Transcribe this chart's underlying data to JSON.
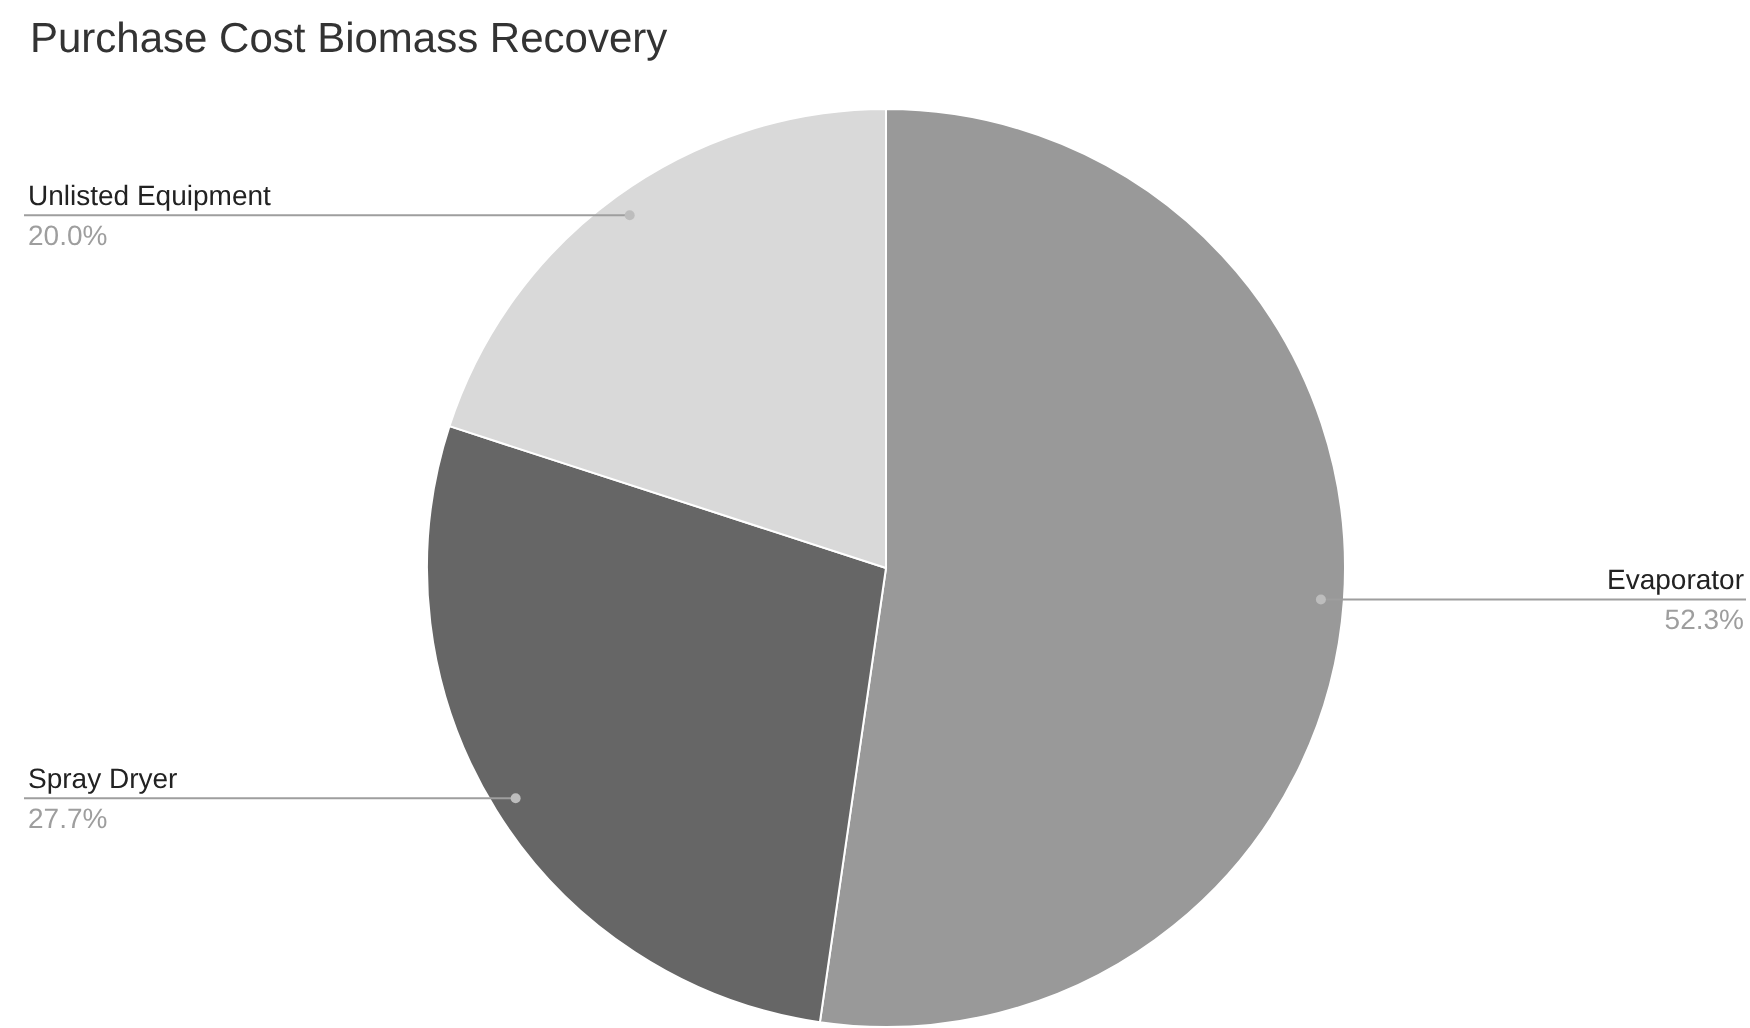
{
  "chart_data": {
    "type": "pie",
    "title": "Purchase Cost Biomass Recovery",
    "categories": [
      "Evaporator",
      "Spray Dryer",
      "Unlisted Equipment"
    ],
    "values": [
      52.3,
      27.7,
      20.0
    ],
    "value_labels": [
      "52.3%",
      "27.7%",
      "20.0%"
    ],
    "colors": [
      "#999999",
      "#666666",
      "#d9d9d9"
    ],
    "legend": false
  }
}
